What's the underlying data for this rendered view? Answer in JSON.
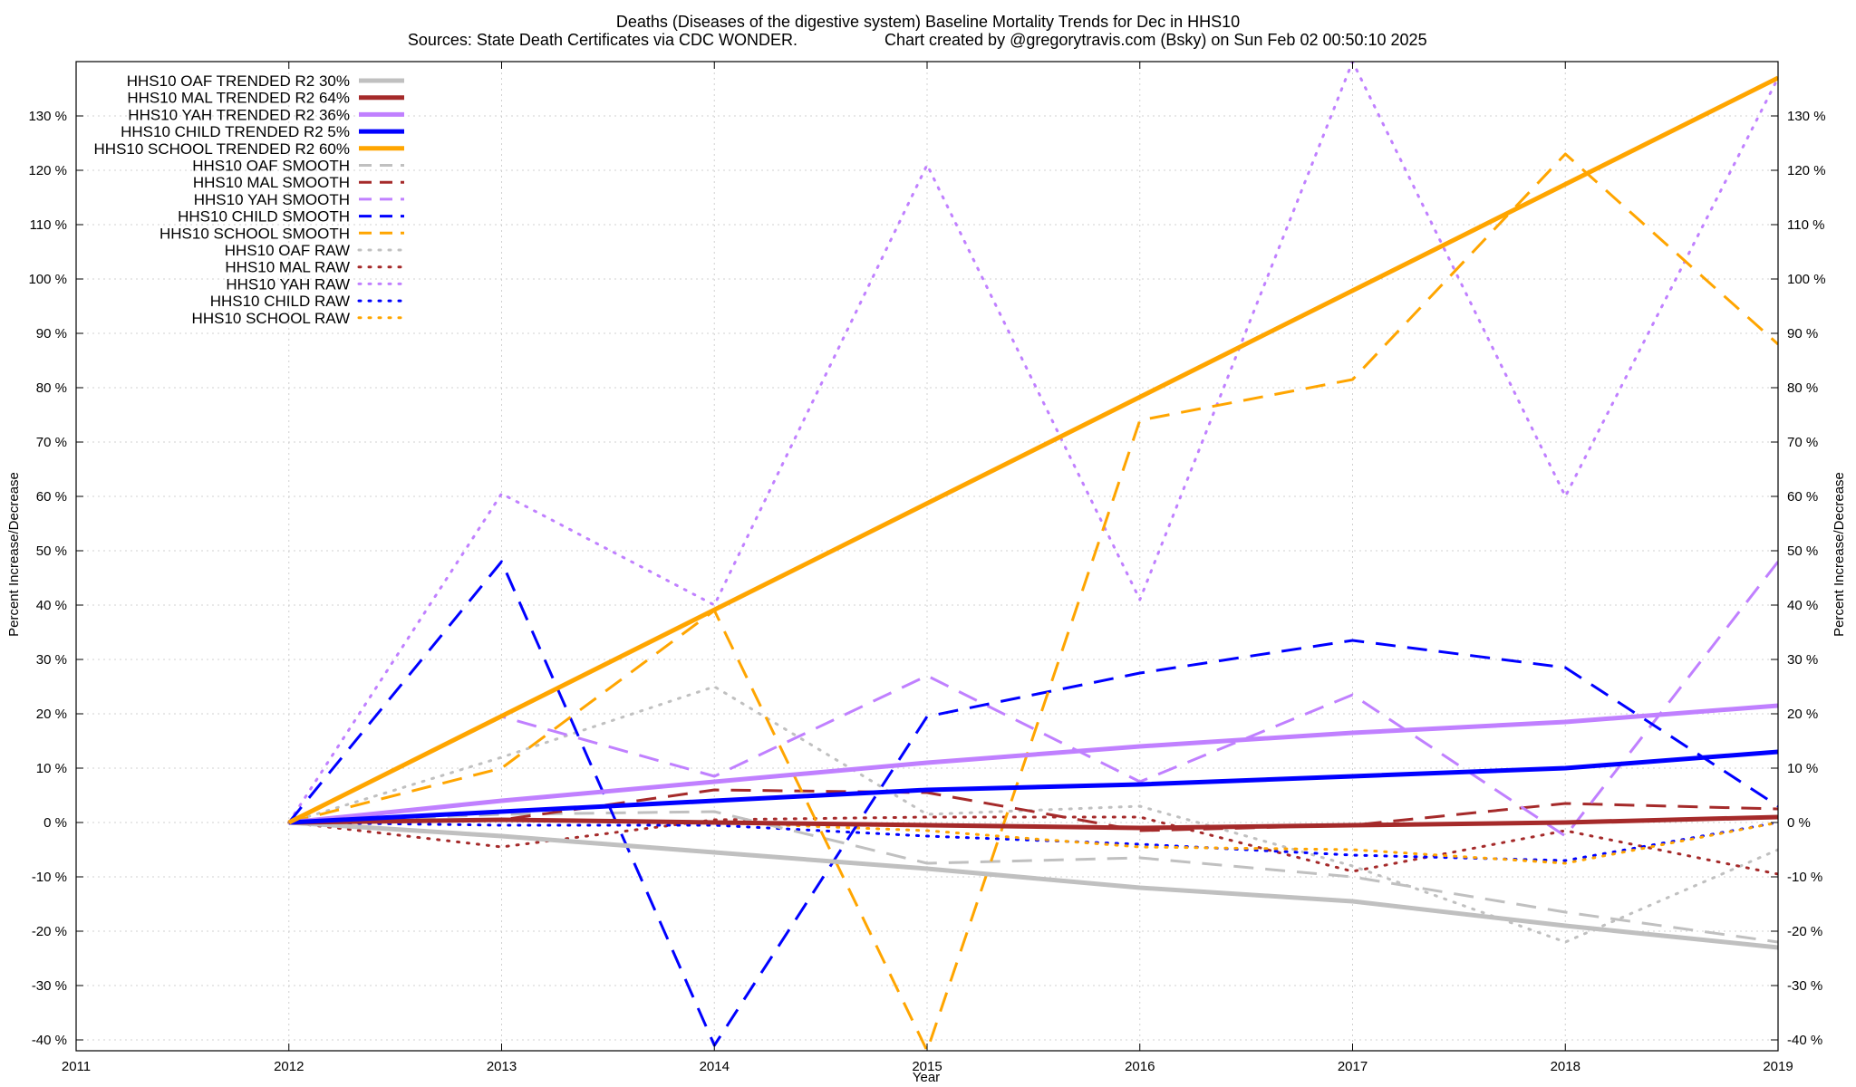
{
  "chart_data": {
    "type": "line",
    "title": "Deaths (Diseases of the digestive system)  Baseline Mortality Trends for Dec in HHS10",
    "subtitle_left": "Sources: State Death Certificates via CDC WONDER.",
    "subtitle_right": "Chart created by @gregorytravis.com (Bsky) on Sun Feb 02 00:50:10 2025",
    "xlabel": "Year",
    "ylabel": "Percent Increase/Decrease",
    "xlim": [
      2011,
      2019
    ],
    "ylim": [
      -42,
      140
    ],
    "x_ticks": [
      2011,
      2012,
      2013,
      2014,
      2015,
      2016,
      2017,
      2018,
      2019
    ],
    "y_ticks": [
      -40,
      -30,
      -20,
      -10,
      0,
      10,
      20,
      30,
      40,
      50,
      60,
      70,
      80,
      90,
      100,
      110,
      120,
      130
    ],
    "y_tick_labels": [
      "-40 %",
      "-30 %",
      "-20 %",
      "-10 %",
      "0 %",
      "10 %",
      "20 %",
      "30 %",
      "40 %",
      "50 %",
      "60 %",
      "70 %",
      "80 %",
      "90 %",
      "100 %",
      "110 %",
      "120 %",
      "130 %"
    ],
    "grid": true,
    "legend_position": "top-left",
    "series": [
      {
        "name": "HHS10 OAF TRENDED R2  30%",
        "style": "solid",
        "color": "#c0c0c0",
        "x": [
          2012,
          2013,
          2014,
          2015,
          2016,
          2017,
          2018,
          2019
        ],
        "y": [
          0,
          -2.5,
          -5.5,
          -8.5,
          -12,
          -14.5,
          -19,
          -23
        ]
      },
      {
        "name": "HHS10 MAL TRENDED R2  64%",
        "style": "solid",
        "color": "#a52a2a",
        "x": [
          2012,
          2013,
          2014,
          2015,
          2016,
          2017,
          2018,
          2019
        ],
        "y": [
          0,
          0.5,
          0,
          -0.5,
          -1,
          -0.5,
          0,
          1
        ]
      },
      {
        "name": "HHS10 YAH TRENDED R2  36%",
        "style": "solid",
        "color": "#c080ff",
        "x": [
          2012,
          2013,
          2014,
          2015,
          2016,
          2017,
          2018,
          2019
        ],
        "y": [
          0,
          4,
          7.5,
          11,
          14,
          16.5,
          18.5,
          21.5
        ]
      },
      {
        "name": "HHS10 CHILD TRENDED R2  5%",
        "style": "solid",
        "color": "#0000ff",
        "x": [
          2012,
          2013,
          2014,
          2015,
          2016,
          2017,
          2018,
          2019
        ],
        "y": [
          0,
          2,
          4,
          6,
          7,
          8.5,
          10,
          13
        ]
      },
      {
        "name": "HHS10 SCHOOL TRENDED R2  60%",
        "style": "solid",
        "color": "#ffa500",
        "x": [
          2012,
          2019
        ],
        "y": [
          0,
          137
        ]
      },
      {
        "name": "HHS10 OAF SMOOTH",
        "style": "dashed",
        "color": "#c0c0c0",
        "x": [
          2012,
          2013,
          2014,
          2015,
          2016,
          2017,
          2018,
          2019
        ],
        "y": [
          0,
          1.5,
          2,
          -7.5,
          -6.5,
          -10,
          -16.5,
          -22
        ]
      },
      {
        "name": "HHS10 MAL SMOOTH",
        "style": "dashed",
        "color": "#a52a2a",
        "x": [
          2012,
          2013,
          2014,
          2015,
          2016,
          2017,
          2018,
          2019
        ],
        "y": [
          0,
          0.5,
          6,
          5.5,
          -1.5,
          -0.5,
          3.5,
          2.5
        ]
      },
      {
        "name": "HHS10 YAH SMOOTH",
        "style": "dashed",
        "color": "#c080ff",
        "x": [
          2012,
          2013,
          2014,
          2015,
          2016,
          2017,
          2018,
          2019
        ],
        "y": [
          0,
          19.5,
          8.5,
          27,
          7.5,
          23.5,
          -2.5,
          48
        ]
      },
      {
        "name": "HHS10 CHILD SMOOTH",
        "style": "dashed",
        "color": "#0000ff",
        "x": [
          2012,
          2013,
          2014,
          2015,
          2016,
          2017,
          2018,
          2019
        ],
        "y": [
          0,
          48,
          -41,
          19.5,
          27.5,
          33.5,
          28.5,
          3
        ]
      },
      {
        "name": "HHS10 SCHOOL SMOOTH",
        "style": "dashed",
        "color": "#ffa500",
        "x": [
          2012,
          2013,
          2014,
          2015,
          2016,
          2017,
          2018,
          2019
        ],
        "y": [
          0,
          10,
          39,
          -42,
          74,
          81.5,
          123,
          88
        ]
      },
      {
        "name": "HHS10 OAF RAW",
        "style": "dotted",
        "color": "#c0c0c0",
        "x": [
          2012,
          2013,
          2014,
          2015,
          2016,
          2017,
          2018,
          2019
        ],
        "y": [
          0,
          12,
          25,
          1.5,
          3,
          -8,
          -22,
          -5
        ]
      },
      {
        "name": "HHS10 MAL RAW",
        "style": "dotted",
        "color": "#a52a2a",
        "x": [
          2012,
          2013,
          2014,
          2015,
          2016,
          2017,
          2018,
          2019
        ],
        "y": [
          0,
          -4.5,
          0.5,
          1,
          1,
          -9,
          -1.5,
          -9.5
        ]
      },
      {
        "name": "HHS10 YAH RAW",
        "style": "dotted",
        "color": "#c080ff",
        "x": [
          2012,
          2013,
          2014,
          2015,
          2016,
          2017,
          2018,
          2019
        ],
        "y": [
          0,
          60.5,
          40,
          121,
          41,
          140,
          60,
          137
        ]
      },
      {
        "name": "HHS10 CHILD RAW",
        "style": "dotted",
        "color": "#0000ff",
        "x": [
          2012,
          2013,
          2014,
          2015,
          2016,
          2017,
          2018,
          2019
        ],
        "y": [
          0,
          -0.5,
          -0.5,
          -2.5,
          -4,
          -6,
          -7,
          0
        ]
      },
      {
        "name": "HHS10 SCHOOL RAW",
        "style": "dotted",
        "color": "#ffa500",
        "x": [
          2012,
          2013,
          2014,
          2015,
          2016,
          2017,
          2018,
          2019
        ],
        "y": [
          0,
          0.5,
          0,
          -1.5,
          -4.5,
          -5,
          -7.5,
          0
        ]
      }
    ]
  }
}
